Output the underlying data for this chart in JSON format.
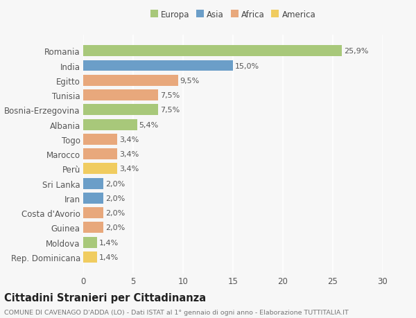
{
  "categories": [
    "Romania",
    "India",
    "Egitto",
    "Tunisia",
    "Bosnia-Erzegovina",
    "Albania",
    "Togo",
    "Marocco",
    "Perù",
    "Sri Lanka",
    "Iran",
    "Costa d'Avorio",
    "Guinea",
    "Moldova",
    "Rep. Dominicana"
  ],
  "values": [
    25.9,
    15.0,
    9.5,
    7.5,
    7.5,
    5.4,
    3.4,
    3.4,
    3.4,
    2.0,
    2.0,
    2.0,
    2.0,
    1.4,
    1.4
  ],
  "continents": [
    "Europa",
    "Asia",
    "Africa",
    "Africa",
    "Europa",
    "Europa",
    "Africa",
    "Africa",
    "America",
    "Asia",
    "Asia",
    "Africa",
    "Africa",
    "Europa",
    "America"
  ],
  "continent_colors": {
    "Europa": "#a8c87a",
    "Asia": "#6b9ec8",
    "Africa": "#e8a87c",
    "America": "#f0cc60"
  },
  "labels": [
    "25,9%",
    "15,0%",
    "9,5%",
    "7,5%",
    "7,5%",
    "5,4%",
    "3,4%",
    "3,4%",
    "3,4%",
    "2,0%",
    "2,0%",
    "2,0%",
    "2,0%",
    "1,4%",
    "1,4%"
  ],
  "xlim": [
    0,
    30
  ],
  "xticks": [
    0,
    5,
    10,
    15,
    20,
    25,
    30
  ],
  "title": "Cittadini Stranieri per Cittadinanza",
  "subtitle": "COMUNE DI CAVENAGO D'ADDA (LO) - Dati ISTAT al 1° gennaio di ogni anno - Elaborazione TUTTITALIA.IT",
  "legend_order": [
    "Europa",
    "Asia",
    "Africa",
    "America"
  ],
  "background_color": "#f7f7f7",
  "bar_height": 0.75,
  "label_fontsize": 8.0,
  "title_fontsize": 10.5,
  "subtitle_fontsize": 6.8,
  "ytick_fontsize": 8.5,
  "xtick_fontsize": 8.5,
  "legend_fontsize": 8.5
}
